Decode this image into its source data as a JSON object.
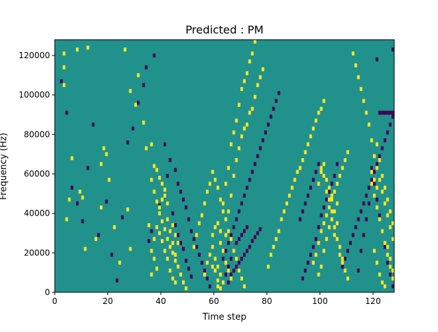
{
  "chart_data": {
    "type": "heatmap",
    "title": "Predicted : PM",
    "xlabel": "Time step",
    "ylabel": "Frequency (Hz)",
    "xlim": [
      0,
      128
    ],
    "ylim": [
      0,
      128000
    ],
    "xticks": [
      0,
      20,
      40,
      60,
      80,
      100,
      120
    ],
    "yticks": [
      0,
      20000,
      40000,
      60000,
      80000,
      100000,
      120000
    ],
    "xtick_labels": [
      "0",
      "20",
      "40",
      "60",
      "80",
      "100",
      "120"
    ],
    "ytick_labels": [
      "0",
      "20000",
      "40000",
      "60000",
      "80000",
      "100000",
      "120000"
    ],
    "grid": false,
    "legend": "none",
    "colormap": "viridis",
    "value_levels": [
      -1,
      0,
      1
    ],
    "level_colors": [
      "#440154",
      "#21918c",
      "#fde725"
    ],
    "background_value": 0,
    "cell_height_hz": 2000,
    "cells_positive": [
      [
        3,
        121000
      ],
      [
        3,
        114000
      ],
      [
        5,
        47000
      ],
      [
        8,
        123000
      ],
      [
        9,
        51000
      ],
      [
        12,
        124000
      ],
      [
        15,
        27000
      ],
      [
        17,
        65000
      ],
      [
        18,
        73000
      ],
      [
        20,
        57000
      ],
      [
        27,
        42000
      ],
      [
        28,
        22000
      ],
      [
        31,
        110000
      ],
      [
        35,
        34000
      ],
      [
        36,
        75000
      ],
      [
        37,
        64000
      ],
      [
        38,
        62000
      ],
      [
        39,
        58000
      ],
      [
        40,
        55000
      ],
      [
        41,
        49000
      ],
      [
        42,
        45000
      ],
      [
        44,
        34000
      ],
      [
        45,
        29000
      ],
      [
        46,
        25000
      ],
      [
        3,
        105000
      ],
      [
        4,
        37000
      ],
      [
        6,
        68000
      ],
      [
        10,
        48000
      ],
      [
        11,
        22000
      ],
      [
        17,
        43000
      ],
      [
        19,
        70000
      ],
      [
        22,
        33000
      ],
      [
        24,
        15000
      ],
      [
        26,
        123000
      ],
      [
        28,
        102000
      ],
      [
        30,
        95000
      ],
      [
        33,
        86000
      ],
      [
        34,
        73000
      ],
      [
        36,
        57000
      ],
      [
        37,
        51000
      ],
      [
        38,
        46000
      ],
      [
        39,
        40000
      ],
      [
        40,
        36000
      ],
      [
        41,
        32000
      ],
      [
        42,
        27000
      ],
      [
        43,
        23000
      ],
      [
        44,
        20000
      ],
      [
        45,
        16000
      ],
      [
        36,
        9000
      ],
      [
        37,
        17000
      ],
      [
        38,
        12000
      ],
      [
        39,
        30000
      ],
      [
        40,
        26000
      ],
      [
        41,
        21000
      ],
      [
        42,
        17000
      ],
      [
        43,
        11000
      ],
      [
        44,
        7000
      ],
      [
        45,
        5000
      ],
      [
        36,
        21000
      ],
      [
        37,
        27000
      ],
      [
        38,
        33000
      ],
      [
        39,
        43000
      ],
      [
        40,
        47000
      ],
      [
        41,
        52000
      ],
      [
        42,
        37000
      ],
      [
        43,
        31000
      ],
      [
        44,
        25000
      ],
      [
        45,
        19000
      ],
      [
        46,
        13000
      ],
      [
        47,
        9000
      ],
      [
        48,
        5000
      ],
      [
        49,
        2000
      ],
      [
        52,
        23000
      ],
      [
        53,
        29000
      ],
      [
        54,
        35000
      ],
      [
        55,
        39000
      ],
      [
        56,
        45000
      ],
      [
        57,
        51000
      ],
      [
        58,
        55000
      ],
      [
        59,
        61000
      ],
      [
        60,
        57000
      ],
      [
        61,
        53000
      ],
      [
        62,
        47000
      ],
      [
        63,
        41000
      ],
      [
        64,
        37000
      ],
      [
        65,
        31000
      ],
      [
        66,
        27000
      ],
      [
        67,
        21000
      ],
      [
        68,
        17000
      ],
      [
        69,
        11000
      ],
      [
        70,
        7000
      ],
      [
        71,
        3000
      ],
      [
        56,
        9000
      ],
      [
        57,
        15000
      ],
      [
        58,
        19000
      ],
      [
        59,
        23000
      ],
      [
        59,
        29000
      ],
      [
        60,
        33000
      ],
      [
        61,
        35000
      ],
      [
        62,
        25000
      ],
      [
        63,
        21000
      ],
      [
        64,
        15000
      ],
      [
        65,
        11000
      ],
      [
        66,
        7000
      ],
      [
        59,
        13000
      ],
      [
        60,
        17000
      ],
      [
        61,
        13000
      ],
      [
        62,
        9000
      ],
      [
        60,
        11000
      ],
      [
        61,
        6000
      ],
      [
        62,
        2000
      ],
      [
        63,
        5000
      ],
      [
        61,
        3000
      ],
      [
        62,
        31000
      ],
      [
        63,
        45000
      ],
      [
        64,
        55000
      ],
      [
        65,
        63000
      ],
      [
        66,
        75000
      ],
      [
        67,
        81000
      ],
      [
        68,
        87000
      ],
      [
        69,
        95000
      ],
      [
        70,
        103000
      ],
      [
        71,
        107000
      ],
      [
        72,
        111000
      ],
      [
        73,
        117000
      ],
      [
        74,
        121000
      ],
      [
        75,
        127000
      ],
      [
        64,
        29000
      ],
      [
        65,
        41000
      ],
      [
        66,
        49000
      ],
      [
        67,
        59000
      ],
      [
        68,
        67000
      ],
      [
        69,
        73000
      ],
      [
        70,
        79000
      ],
      [
        71,
        83000
      ],
      [
        72,
        85000
      ],
      [
        73,
        91000
      ],
      [
        74,
        93000
      ],
      [
        75,
        99000
      ],
      [
        76,
        105000
      ],
      [
        77,
        109000
      ],
      [
        78,
        113000
      ],
      [
        80,
        13000
      ],
      [
        81,
        19000
      ],
      [
        82,
        23000
      ],
      [
        83,
        27000
      ],
      [
        84,
        31000
      ],
      [
        85,
        37000
      ],
      [
        86,
        41000
      ],
      [
        87,
        45000
      ],
      [
        88,
        49000
      ],
      [
        89,
        53000
      ],
      [
        90,
        57000
      ],
      [
        91,
        61000
      ],
      [
        92,
        63000
      ],
      [
        93,
        67000
      ],
      [
        94,
        71000
      ],
      [
        95,
        75000
      ],
      [
        96,
        79000
      ],
      [
        97,
        83000
      ],
      [
        98,
        87000
      ],
      [
        99,
        91000
      ],
      [
        100,
        93000
      ],
      [
        101,
        97000
      ],
      [
        97,
        15000
      ],
      [
        98,
        19000
      ],
      [
        99,
        25000
      ],
      [
        100,
        31000
      ],
      [
        101,
        35000
      ],
      [
        102,
        39000
      ],
      [
        103,
        43000
      ],
      [
        104,
        47000
      ],
      [
        105,
        51000
      ],
      [
        106,
        55000
      ],
      [
        107,
        59000
      ],
      [
        108,
        63000
      ],
      [
        109,
        67000
      ],
      [
        110,
        71000
      ],
      [
        99,
        9000
      ],
      [
        100,
        13000
      ],
      [
        101,
        21000
      ],
      [
        102,
        27000
      ],
      [
        103,
        33000
      ],
      [
        104,
        37000
      ],
      [
        105,
        41000
      ],
      [
        106,
        45000
      ],
      [
        99,
        55000
      ],
      [
        100,
        61000
      ],
      [
        101,
        65000
      ],
      [
        102,
        57000
      ],
      [
        103,
        53000
      ],
      [
        104,
        49000
      ],
      [
        105,
        29000
      ],
      [
        106,
        35000
      ],
      [
        107,
        23000
      ],
      [
        108,
        17000
      ],
      [
        109,
        11000
      ],
      [
        110,
        7000
      ],
      [
        100,
        63000
      ],
      [
        101,
        59000
      ],
      [
        102,
        51000
      ],
      [
        103,
        47000
      ],
      [
        104,
        41000
      ],
      [
        105,
        33000
      ],
      [
        106,
        27000
      ],
      [
        107,
        19000
      ],
      [
        108,
        15000
      ],
      [
        112,
        121000
      ],
      [
        113,
        115000
      ],
      [
        114,
        109000
      ],
      [
        115,
        103000
      ],
      [
        116,
        97000
      ],
      [
        117,
        91000
      ],
      [
        118,
        85000
      ],
      [
        119,
        77000
      ],
      [
        120,
        69000
      ],
      [
        121,
        63000
      ],
      [
        122,
        57000
      ],
      [
        123,
        51000
      ],
      [
        124,
        45000
      ],
      [
        125,
        39000
      ],
      [
        126,
        33000
      ],
      [
        127,
        27000
      ],
      [
        120,
        21000
      ],
      [
        121,
        15000
      ],
      [
        122,
        9000
      ],
      [
        123,
        5000
      ],
      [
        124,
        3000
      ],
      [
        121,
        75000
      ],
      [
        122,
        67000
      ],
      [
        123,
        59000
      ],
      [
        124,
        53000
      ],
      [
        125,
        47000
      ],
      [
        126,
        41000
      ],
      [
        127,
        35000
      ],
      [
        119,
        55000
      ],
      [
        120,
        49000
      ],
      [
        121,
        43000
      ],
      [
        122,
        37000
      ],
      [
        123,
        31000
      ],
      [
        124,
        25000
      ],
      [
        125,
        19000
      ],
      [
        126,
        13000
      ],
      [
        127,
        7000
      ],
      [
        119,
        61000
      ],
      [
        120,
        57000
      ],
      [
        121,
        53000
      ],
      [
        125,
        23000
      ],
      [
        126,
        17000
      ],
      [
        127,
        11000
      ]
    ],
    "cells_negative": [
      [
        2,
        107000
      ],
      [
        4,
        91000
      ],
      [
        6,
        53000
      ],
      [
        8,
        45000
      ],
      [
        10,
        36000
      ],
      [
        12,
        63000
      ],
      [
        14,
        85000
      ],
      [
        16,
        29000
      ],
      [
        19,
        46000
      ],
      [
        21,
        19000
      ],
      [
        23,
        6000
      ],
      [
        25,
        38000
      ],
      [
        27,
        76000
      ],
      [
        29,
        83000
      ],
      [
        31,
        96000
      ],
      [
        33,
        105000
      ],
      [
        34,
        114000
      ],
      [
        35,
        26000
      ],
      [
        36,
        31000
      ],
      [
        37,
        120000
      ],
      [
        39,
        44000
      ],
      [
        41,
        75000
      ],
      [
        42,
        59000
      ],
      [
        43,
        67000
      ],
      [
        44,
        40000
      ],
      [
        45,
        34000
      ],
      [
        46,
        29000
      ],
      [
        47,
        25000
      ],
      [
        48,
        22000
      ],
      [
        49,
        16000
      ],
      [
        50,
        12000
      ],
      [
        51,
        8000
      ],
      [
        45,
        62000
      ],
      [
        46,
        55000
      ],
      [
        47,
        51000
      ],
      [
        48,
        47000
      ],
      [
        49,
        43000
      ],
      [
        50,
        37000
      ],
      [
        51,
        31000
      ],
      [
        52,
        27000
      ],
      [
        53,
        23000
      ],
      [
        54,
        19000
      ],
      [
        55,
        15000
      ],
      [
        56,
        11000
      ],
      [
        57,
        7000
      ],
      [
        58,
        3000
      ],
      [
        63,
        17000
      ],
      [
        64,
        21000
      ],
      [
        65,
        25000
      ],
      [
        66,
        29000
      ],
      [
        67,
        33000
      ],
      [
        68,
        37000
      ],
      [
        69,
        41000
      ],
      [
        70,
        45000
      ],
      [
        71,
        49000
      ],
      [
        72,
        53000
      ],
      [
        73,
        57000
      ],
      [
        74,
        61000
      ],
      [
        75,
        65000
      ],
      [
        76,
        69000
      ],
      [
        77,
        73000
      ],
      [
        78,
        77000
      ],
      [
        79,
        81000
      ],
      [
        80,
        85000
      ],
      [
        81,
        89000
      ],
      [
        82,
        93000
      ],
      [
        83,
        97000
      ],
      [
        84,
        101000
      ],
      [
        64,
        9000
      ],
      [
        65,
        13000
      ],
      [
        66,
        17000
      ],
      [
        67,
        21000
      ],
      [
        68,
        25000
      ],
      [
        69,
        27000
      ],
      [
        70,
        29000
      ],
      [
        71,
        31000
      ],
      [
        72,
        33000
      ],
      [
        65,
        5000
      ],
      [
        66,
        9000
      ],
      [
        67,
        11000
      ],
      [
        68,
        13000
      ],
      [
        69,
        15000
      ],
      [
        70,
        17000
      ],
      [
        71,
        19000
      ],
      [
        72,
        21000
      ],
      [
        73,
        23000
      ],
      [
        74,
        26000
      ],
      [
        75,
        28000
      ],
      [
        76,
        30000
      ],
      [
        77,
        32000
      ],
      [
        92,
        37000
      ],
      [
        93,
        41000
      ],
      [
        94,
        45000
      ],
      [
        95,
        49000
      ],
      [
        96,
        53000
      ],
      [
        97,
        57000
      ],
      [
        98,
        61000
      ],
      [
        99,
        65000
      ],
      [
        93,
        7000
      ],
      [
        94,
        11000
      ],
      [
        95,
        15000
      ],
      [
        96,
        19000
      ],
      [
        97,
        23000
      ],
      [
        98,
        27000
      ],
      [
        99,
        33000
      ],
      [
        100,
        39000
      ],
      [
        101,
        43000
      ],
      [
        102,
        47000
      ],
      [
        103,
        51000
      ],
      [
        104,
        55000
      ],
      [
        105,
        59000
      ],
      [
        106,
        65000
      ],
      [
        108,
        13000
      ],
      [
        109,
        17000
      ],
      [
        110,
        21000
      ],
      [
        111,
        25000
      ],
      [
        112,
        29000
      ],
      [
        113,
        33000
      ],
      [
        114,
        37000
      ],
      [
        115,
        41000
      ],
      [
        116,
        45000
      ],
      [
        117,
        49000
      ],
      [
        118,
        53000
      ],
      [
        119,
        57000
      ],
      [
        120,
        61000
      ],
      [
        121,
        65000
      ],
      [
        122,
        69000
      ],
      [
        123,
        73000
      ],
      [
        124,
        77000
      ],
      [
        125,
        81000
      ],
      [
        126,
        85000
      ],
      [
        127,
        89000
      ],
      [
        122,
        91000
      ],
      [
        123,
        91000
      ],
      [
        124,
        91000
      ],
      [
        125,
        91000
      ],
      [
        126,
        91000
      ],
      [
        127,
        91000
      ],
      [
        127,
        123000
      ],
      [
        121,
        118000
      ],
      [
        119,
        63000
      ],
      [
        120,
        55000
      ],
      [
        121,
        47000
      ],
      [
        122,
        39000
      ],
      [
        123,
        31000
      ],
      [
        124,
        23000
      ],
      [
        125,
        15000
      ],
      [
        126,
        9000
      ],
      [
        127,
        3000
      ],
      [
        118,
        45000
      ],
      [
        117,
        37000
      ],
      [
        116,
        29000
      ],
      [
        115,
        21000
      ],
      [
        114,
        11000
      ]
    ]
  }
}
